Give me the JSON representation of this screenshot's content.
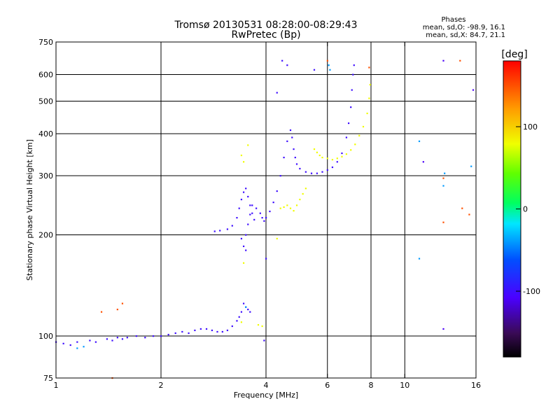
{
  "chart_data": {
    "type": "scatter",
    "title": "Tromsø 20130531 08:28:00-08:29:43",
    "subtitle": "RwPretec (Bp)",
    "xlabel": "Frequency [MHz]",
    "ylabel": "Stationary phase Virtual Height [km]",
    "xscale": "log",
    "yscale": "log",
    "xlim": [
      1,
      16
    ],
    "ylim": [
      75,
      750
    ],
    "x_ticks": [
      1,
      2,
      4,
      6,
      8,
      10,
      16
    ],
    "x_tick_labels": [
      "1",
      "2",
      "4",
      "6",
      "8",
      "10",
      "16"
    ],
    "y_ticks": [
      75,
      100,
      200,
      300,
      400,
      500,
      600,
      750
    ],
    "y_tick_labels": [
      "75",
      "100",
      "200",
      "300",
      "400",
      "500",
      "600",
      "750"
    ],
    "x_gridlines": [
      2,
      4,
      6,
      8,
      10
    ],
    "y_gridlines": [
      100,
      200,
      300,
      400,
      500,
      600
    ],
    "grid": true,
    "stats": {
      "heading": "Phases",
      "line_o": "mean, sd,O: -98.9, 16.1",
      "line_x": "mean, sd,X: 84.7, 21.1"
    },
    "colorbar": {
      "label": "[deg]",
      "range": [
        -180,
        180
      ],
      "ticks": [
        100,
        0,
        -100
      ],
      "tick_labels": [
        "100",
        "0",
        "-100"
      ]
    },
    "series": [
      {
        "name": "O-mode trace (blue, ~-100 deg)",
        "phase": -100,
        "points": [
          [
            1.0,
            96
          ],
          [
            1.05,
            95
          ],
          [
            1.1,
            94
          ],
          [
            1.15,
            96
          ],
          [
            1.25,
            97
          ],
          [
            1.3,
            96
          ],
          [
            1.4,
            98
          ],
          [
            1.45,
            97
          ],
          [
            1.5,
            99
          ],
          [
            1.55,
            98
          ],
          [
            1.6,
            99
          ],
          [
            1.7,
            100
          ],
          [
            1.8,
            99
          ],
          [
            1.9,
            100
          ],
          [
            2.0,
            100
          ],
          [
            2.1,
            101
          ],
          [
            2.2,
            102
          ],
          [
            2.3,
            103
          ],
          [
            2.4,
            102
          ],
          [
            2.5,
            104
          ],
          [
            2.6,
            105
          ],
          [
            2.7,
            105
          ],
          [
            2.8,
            104
          ],
          [
            2.9,
            103
          ],
          [
            3.0,
            103
          ],
          [
            3.1,
            104
          ],
          [
            3.2,
            107
          ],
          [
            3.3,
            111
          ],
          [
            3.35,
            114
          ],
          [
            3.4,
            118
          ],
          [
            3.45,
            125
          ],
          [
            3.5,
            122
          ],
          [
            3.55,
            120
          ],
          [
            3.6,
            118
          ],
          [
            2.85,
            205
          ],
          [
            2.95,
            206
          ],
          [
            3.1,
            208
          ],
          [
            3.2,
            213
          ],
          [
            3.3,
            225
          ],
          [
            3.35,
            240
          ],
          [
            3.4,
            255
          ],
          [
            3.45,
            268
          ],
          [
            3.5,
            275
          ],
          [
            3.55,
            260
          ],
          [
            3.6,
            245
          ],
          [
            3.65,
            232
          ],
          [
            3.7,
            222
          ],
          [
            3.4,
            195
          ],
          [
            3.45,
            185
          ],
          [
            3.5,
            180
          ],
          [
            3.5,
            200
          ],
          [
            3.55,
            215
          ],
          [
            3.6,
            230
          ],
          [
            3.65,
            245
          ],
          [
            3.75,
            240
          ],
          [
            3.85,
            232
          ],
          [
            3.9,
            225
          ],
          [
            3.95,
            220
          ],
          [
            4.0,
            225
          ],
          [
            4.1,
            235
          ],
          [
            4.2,
            250
          ],
          [
            4.3,
            270
          ],
          [
            4.4,
            300
          ],
          [
            4.5,
            340
          ],
          [
            4.6,
            380
          ],
          [
            4.7,
            410
          ],
          [
            4.75,
            390
          ],
          [
            4.8,
            360
          ],
          [
            4.85,
            340
          ],
          [
            4.9,
            325
          ],
          [
            5.0,
            315
          ],
          [
            5.2,
            308
          ],
          [
            5.4,
            305
          ],
          [
            5.6,
            305
          ],
          [
            5.8,
            308
          ],
          [
            6.0,
            312
          ],
          [
            6.2,
            318
          ],
          [
            6.4,
            330
          ],
          [
            6.6,
            350
          ],
          [
            6.8,
            390
          ],
          [
            6.9,
            430
          ],
          [
            7.0,
            480
          ],
          [
            7.05,
            540
          ],
          [
            7.1,
            600
          ],
          [
            7.15,
            640
          ],
          [
            4.3,
            530
          ],
          [
            4.45,
            660
          ],
          [
            4.6,
            640
          ],
          [
            5.5,
            620
          ],
          [
            4.0,
            170
          ],
          [
            3.95,
            97
          ]
        ]
      },
      {
        "name": "X-mode trace (yellow, ~+80 deg)",
        "phase": 80,
        "points": [
          [
            4.4,
            240
          ],
          [
            4.5,
            242
          ],
          [
            4.6,
            245
          ],
          [
            4.7,
            240
          ],
          [
            4.8,
            236
          ],
          [
            4.9,
            245
          ],
          [
            5.0,
            255
          ],
          [
            5.1,
            265
          ],
          [
            5.2,
            275
          ],
          [
            5.5,
            360
          ],
          [
            5.6,
            352
          ],
          [
            5.7,
            345
          ],
          [
            5.8,
            340
          ],
          [
            6.0,
            338
          ],
          [
            6.2,
            335
          ],
          [
            6.4,
            338
          ],
          [
            6.6,
            342
          ],
          [
            6.8,
            348
          ],
          [
            7.0,
            358
          ],
          [
            7.2,
            372
          ],
          [
            7.4,
            395
          ],
          [
            7.6,
            420
          ],
          [
            7.8,
            460
          ],
          [
            7.9,
            510
          ],
          [
            7.95,
            560
          ],
          [
            3.4,
            345
          ],
          [
            3.45,
            330
          ],
          [
            3.55,
            370
          ],
          [
            3.45,
            165
          ],
          [
            3.4,
            110
          ],
          [
            3.8,
            108
          ],
          [
            3.9,
            107
          ],
          [
            4.3,
            195
          ]
        ]
      },
      {
        "name": "Scattered high-phase echoes (orange/red)",
        "phase": 150,
        "points": [
          [
            1.35,
            118
          ],
          [
            1.5,
            120
          ],
          [
            1.55,
            125
          ],
          [
            1.45,
            75
          ],
          [
            6.0,
            660
          ],
          [
            7.9,
            630
          ],
          [
            12.9,
            295
          ],
          [
            12.9,
            218
          ],
          [
            14.4,
            660
          ],
          [
            14.6,
            240
          ],
          [
            15.3,
            230
          ]
        ]
      },
      {
        "name": "Scattered cyan echoes",
        "phase": -40,
        "points": [
          [
            1.15,
            92
          ],
          [
            1.2,
            93
          ],
          [
            3.5,
            122
          ],
          [
            6.05,
            640
          ],
          [
            6.1,
            620
          ],
          [
            11.0,
            380
          ],
          [
            13.0,
            305
          ],
          [
            12.9,
            280
          ],
          [
            11.0,
            170
          ],
          [
            15.5,
            320
          ]
        ]
      },
      {
        "name": "Scattered blue echoes (right)",
        "phase": -110,
        "points": [
          [
            11.3,
            330
          ],
          [
            12.9,
            660
          ],
          [
            12.9,
            105
          ],
          [
            15.7,
            540
          ]
        ]
      }
    ]
  }
}
